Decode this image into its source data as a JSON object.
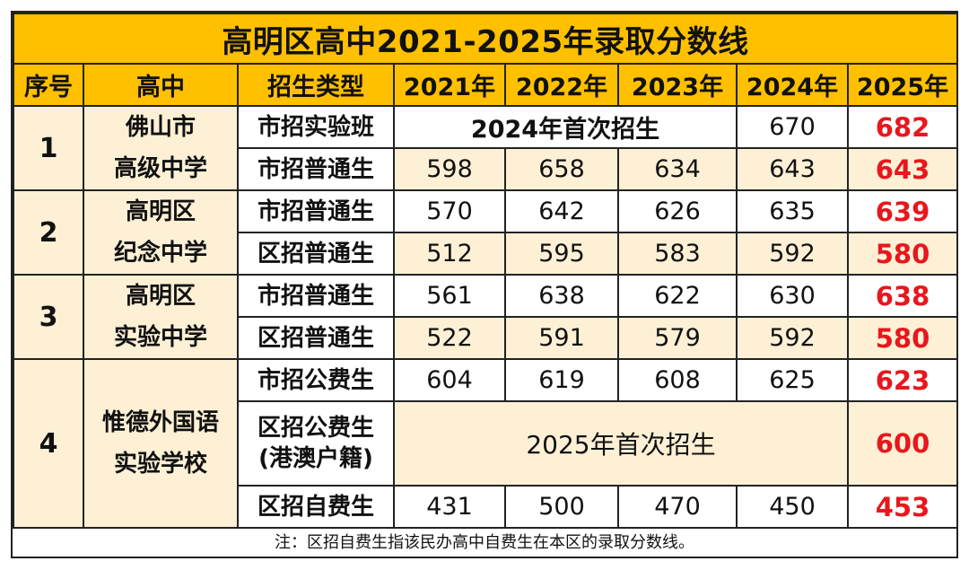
{
  "title": "高明区高中2021-2025年录取分数线",
  "headers": {
    "index": "序号",
    "school": "高中",
    "type": "招生类型",
    "y2021": "2021年",
    "y2022": "2022年",
    "y2023": "2023年",
    "y2024": "2024年",
    "y2025": "2025年"
  },
  "schools": [
    {
      "index": "1",
      "name_line1": "佛山市",
      "name_line2": "高级中学",
      "rows": [
        {
          "type": "市招实验班",
          "merged_note": "2024年首次招生",
          "y2024": "670",
          "y2025": "682"
        },
        {
          "type": "市招普通生",
          "y2021": "598",
          "y2022": "658",
          "y2023": "634",
          "y2024": "643",
          "y2025": "643"
        }
      ]
    },
    {
      "index": "2",
      "name_line1": "高明区",
      "name_line2": "纪念中学",
      "rows": [
        {
          "type": "市招普通生",
          "y2021": "570",
          "y2022": "642",
          "y2023": "626",
          "y2024": "635",
          "y2025": "639"
        },
        {
          "type": "区招普通生",
          "y2021": "512",
          "y2022": "595",
          "y2023": "583",
          "y2024": "592",
          "y2025": "580"
        }
      ]
    },
    {
      "index": "3",
      "name_line1": "高明区",
      "name_line2": "实验中学",
      "rows": [
        {
          "type": "市招普通生",
          "y2021": "561",
          "y2022": "638",
          "y2023": "622",
          "y2024": "630",
          "y2025": "638"
        },
        {
          "type": "区招普通生",
          "y2021": "522",
          "y2022": "591",
          "y2023": "579",
          "y2024": "592",
          "y2025": "580"
        }
      ]
    },
    {
      "index": "4",
      "name_line1": "惟德外国语",
      "name_line2": "实验学校",
      "rows": [
        {
          "type": "市招公费生",
          "y2021": "604",
          "y2022": "619",
          "y2023": "608",
          "y2024": "625",
          "y2025": "623"
        },
        {
          "type_line1": "区招公费生",
          "type_line2": "(港澳户籍)",
          "merged_note": "2025年首次招生",
          "y2025": "600"
        },
        {
          "type": "区招自费生",
          "y2021": "431",
          "y2022": "500",
          "y2023": "470",
          "y2024": "450",
          "y2025": "453"
        }
      ]
    }
  ],
  "note": "注：区招自费生指该民办高中自费生在本区的录取分数线。",
  "colors": {
    "header_bg": "#ffc000",
    "shaded_bg": "#fdf0d5",
    "highlight_text": "#e8171d",
    "border": "#222222"
  }
}
